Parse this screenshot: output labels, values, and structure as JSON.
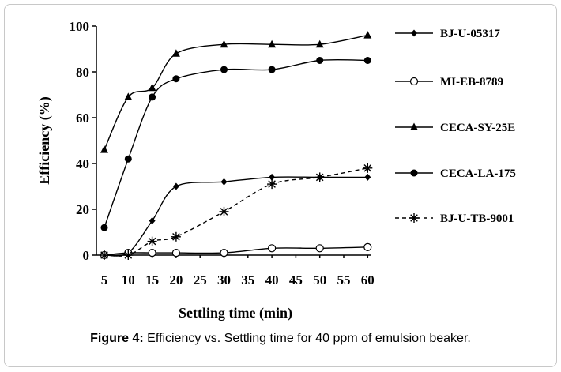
{
  "chart_data": {
    "type": "line",
    "xlabel": "Settling time  (min)",
    "ylabel": "Efficiency  (%)",
    "x": [
      5,
      10,
      15,
      20,
      25,
      30,
      35,
      40,
      45,
      50,
      55,
      60
    ],
    "x_tick_labels": [
      "5",
      "10",
      "15",
      "20",
      "25",
      "30",
      "35",
      "40",
      "45",
      "50",
      "55",
      "60"
    ],
    "y_ticks": [
      0,
      20,
      40,
      60,
      80,
      100
    ],
    "y_tick_labels": [
      "0",
      "20",
      "40",
      "60",
      "80",
      "100"
    ],
    "ylim": [
      0,
      100
    ],
    "legend_position": "right",
    "grid": false,
    "series": [
      {
        "name": "BJ-U-05317",
        "marker": "diamond",
        "line": "solid",
        "color": "#000000",
        "x": [
          5,
          10,
          15,
          20,
          30,
          40,
          50,
          60
        ],
        "y": [
          0,
          1,
          15,
          30,
          32,
          34,
          34,
          34
        ]
      },
      {
        "name": "MI-EB-8789",
        "marker": "open-circle",
        "line": "solid",
        "color": "#000000",
        "x": [
          5,
          10,
          15,
          20,
          30,
          40,
          50,
          60
        ],
        "y": [
          0,
          1,
          1,
          1,
          1,
          3,
          3,
          3.5
        ]
      },
      {
        "name": "CECA-SY-25E",
        "marker": "triangle",
        "line": "solid",
        "color": "#000000",
        "x": [
          5,
          10,
          15,
          20,
          30,
          40,
          50,
          60
        ],
        "y": [
          46,
          69,
          73,
          88,
          92,
          92,
          92,
          96
        ]
      },
      {
        "name": "CECA-LA-175",
        "marker": "filled-circle",
        "line": "solid",
        "color": "#000000",
        "x": [
          5,
          10,
          15,
          20,
          30,
          40,
          50,
          60
        ],
        "y": [
          12,
          42,
          69,
          77,
          81,
          81,
          85,
          85
        ]
      },
      {
        "name": "BJ-U-TB-9001",
        "marker": "asterisk",
        "line": "dashed",
        "color": "#000000",
        "x": [
          5,
          10,
          15,
          20,
          30,
          40,
          50,
          60
        ],
        "y": [
          0,
          0,
          6,
          8,
          19,
          31,
          34,
          38
        ]
      }
    ]
  },
  "caption": {
    "label": "Figure 4:",
    "text": " Efficiency vs. Settling time for 40 ppm of emulsion beaker."
  }
}
